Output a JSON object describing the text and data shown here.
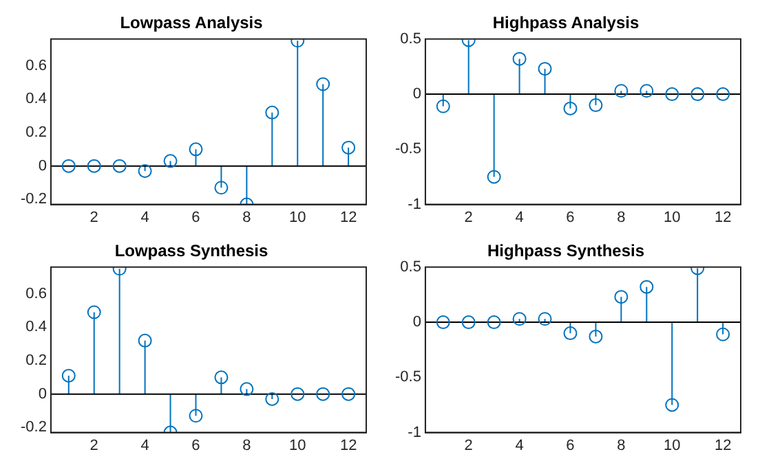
{
  "chart_data": [
    {
      "type": "lollipop",
      "title": "Lowpass Analysis",
      "x": [
        1,
        2,
        3,
        4,
        5,
        6,
        7,
        8,
        9,
        10,
        11,
        12
      ],
      "values": [
        0,
        0,
        0,
        -0.03,
        0.03,
        0.1,
        -0.13,
        -0.23,
        0.32,
        0.75,
        0.49,
        0.11
      ],
      "color": "#0072bd",
      "marker": "circle",
      "xlim": [
        0.3,
        12.7
      ],
      "xticks": [
        2,
        4,
        6,
        8,
        10,
        12
      ],
      "ylim": [
        -0.23,
        0.76
      ],
      "yticks": [
        -0.2,
        0,
        0.2,
        0.4,
        0.6
      ],
      "ref_lines": [
        {
          "axis": "y",
          "value": 0,
          "color": "#000000"
        }
      ]
    },
    {
      "type": "lollipop",
      "title": "Highpass Analysis",
      "x": [
        1,
        2,
        3,
        4,
        5,
        6,
        7,
        8,
        9,
        10,
        11,
        12
      ],
      "values": [
        -0.11,
        0.49,
        -0.75,
        0.32,
        0.23,
        -0.13,
        -0.1,
        0.03,
        0.03,
        0,
        0,
        0
      ],
      "color": "#0072bd",
      "marker": "circle",
      "xlim": [
        0.3,
        12.7
      ],
      "xticks": [
        2,
        4,
        6,
        8,
        10,
        12
      ],
      "ylim": [
        -1,
        0.5
      ],
      "yticks": [
        -1,
        -0.5,
        0,
        0.5
      ],
      "ref_lines": [
        {
          "axis": "y",
          "value": 0,
          "color": "#000000"
        }
      ]
    },
    {
      "type": "lollipop",
      "title": "Lowpass Synthesis",
      "x": [
        1,
        2,
        3,
        4,
        5,
        6,
        7,
        8,
        9,
        10,
        11,
        12
      ],
      "values": [
        0.11,
        0.49,
        0.75,
        0.32,
        -0.23,
        -0.13,
        0.1,
        0.03,
        -0.03,
        0,
        0,
        0
      ],
      "color": "#0072bd",
      "marker": "circle",
      "xlim": [
        0.3,
        12.7
      ],
      "xticks": [
        2,
        4,
        6,
        8,
        10,
        12
      ],
      "ylim": [
        -0.23,
        0.76
      ],
      "yticks": [
        -0.2,
        0,
        0.2,
        0.4,
        0.6
      ],
      "ref_lines": [
        {
          "axis": "y",
          "value": 0,
          "color": "#000000"
        }
      ]
    },
    {
      "type": "lollipop",
      "title": "Highpass Synthesis",
      "x": [
        1,
        2,
        3,
        4,
        5,
        6,
        7,
        8,
        9,
        10,
        11,
        12
      ],
      "values": [
        0,
        0,
        0,
        0.03,
        0.03,
        -0.1,
        -0.13,
        0.23,
        0.32,
        -0.75,
        0.49,
        -0.11
      ],
      "color": "#0072bd",
      "marker": "circle",
      "xlim": [
        0.3,
        12.7
      ],
      "xticks": [
        2,
        4,
        6,
        8,
        10,
        12
      ],
      "ylim": [
        -1,
        0.5
      ],
      "yticks": [
        -1,
        -0.5,
        0,
        0.5
      ],
      "ref_lines": [
        {
          "axis": "y",
          "value": 0,
          "color": "#000000"
        }
      ]
    }
  ]
}
